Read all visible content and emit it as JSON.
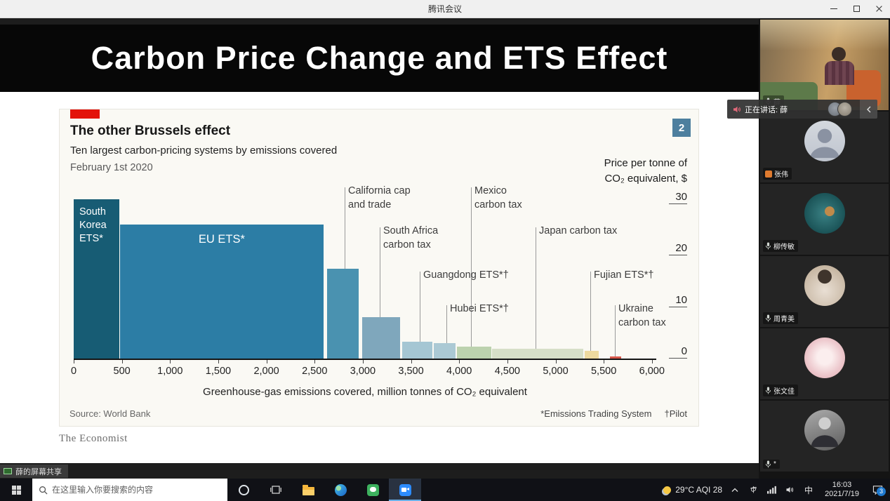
{
  "window": {
    "title": "腾讯会议"
  },
  "slide": {
    "title": "Carbon Price Change and ETS Effect",
    "brand": "The Economist"
  },
  "chart": {
    "badge": "2",
    "title": "The other Brussels effect",
    "subtitle": "Ten largest carbon-pricing systems by emissions covered",
    "date": "February 1st 2020",
    "y_axis_title": [
      "Price per tonne of",
      "CO₂ equivalent, $"
    ],
    "x_axis_title": "Greenhouse-gas emissions covered, million tonnes of CO₂ equivalent",
    "source": "Source: World Bank",
    "footnotes": {
      "ets": "*Emissions Trading System",
      "pilot": "†Pilot"
    },
    "accent_red": "#e3120b",
    "badge_blue": "#4d7f9e"
  },
  "chart_data": {
    "type": "bar",
    "variant": "variable-width-bar",
    "title": "The other Brussels effect",
    "subtitle": "Ten largest carbon-pricing systems by emissions covered",
    "date": "February 1st 2020",
    "xlabel": "Greenhouse-gas emissions covered, million tonnes of CO₂ equivalent",
    "ylabel": "Price per tonne of CO₂ equivalent, $",
    "xlim": [
      0,
      6200
    ],
    "ylim": [
      0,
      32
    ],
    "grid": false,
    "legend": false,
    "x_ticks": [
      0,
      500,
      1000,
      1500,
      2000,
      2500,
      3000,
      3500,
      4000,
      4500,
      5000,
      5500,
      6000
    ],
    "x_tick_labels": [
      "0",
      "500",
      "1,000",
      "1,500",
      "2,000",
      "2,500",
      "3,000",
      "3,500",
      "4,000",
      "4,500",
      "5,000",
      "5,500",
      "6,000"
    ],
    "y_ticks": [
      30,
      20,
      10,
      0
    ],
    "source": "World Bank",
    "bars": [
      {
        "name": "South Korea ETS*",
        "x_start": 0,
        "x_end": 480,
        "price": 31,
        "color": "#175c74",
        "label_lines": [
          "South",
          "Korea",
          "ETS*"
        ],
        "label_align": "left"
      },
      {
        "name": "EU ETS*",
        "x_start": 480,
        "x_end": 2600,
        "price": 26,
        "color": "#2c7da5",
        "label_lines": [
          "EU ETS*"
        ],
        "label_align": "center"
      },
      {
        "name": "California cap and trade",
        "x_start": 2630,
        "x_end": 2965,
        "price": 17.5,
        "color": "#4a92b0"
      },
      {
        "name": "South Africa carbon tax",
        "x_start": 2990,
        "x_end": 3395,
        "price": 8,
        "color": "#7fa7bc"
      },
      {
        "name": "Guangdong ETS*†",
        "x_start": 3410,
        "x_end": 3730,
        "price": 3.3,
        "color": "#a5c6d3"
      },
      {
        "name": "Hubei ETS*†",
        "x_start": 3735,
        "x_end": 3970,
        "price": 3,
        "color": "#abc9d4"
      },
      {
        "name": "Mexico carbon tax",
        "x_start": 3975,
        "x_end": 4340,
        "price": 2.3,
        "color": "#bcd2ae"
      },
      {
        "name": "Japan carbon tax",
        "x_start": 4340,
        "x_end": 5295,
        "price": 1.9,
        "color": "#d6dfc8"
      },
      {
        "name": "Fujian ETS*†",
        "x_start": 5300,
        "x_end": 5455,
        "price": 1.5,
        "color": "#eeda9f"
      },
      {
        "name": "Ukraine carbon tax",
        "x_start": 5565,
        "x_end": 5690,
        "price": 0.4,
        "color": "#d8574a"
      }
    ],
    "annotations": [
      {
        "lines": [
          "California cap",
          "and trade"
        ],
        "bar": 2
      },
      {
        "lines": [
          "Mexico",
          "carbon tax"
        ],
        "bar": 6
      },
      {
        "lines": [
          "South Africa",
          "carbon tax"
        ],
        "bar": 3
      },
      {
        "lines": [
          "Japan carbon tax"
        ],
        "bar": 7
      },
      {
        "lines": [
          "Guangdong ETS*†"
        ],
        "bar": 4
      },
      {
        "lines": [
          "Fujian ETS*†"
        ],
        "bar": 8
      },
      {
        "lines": [
          "Hubei ETS*†"
        ],
        "bar": 5
      },
      {
        "lines": [
          "Ukraine",
          "carbon tax"
        ],
        "bar": 9
      }
    ]
  },
  "meeting": {
    "speaking_label": "正在讲话: 薛",
    "share_chip_label": "薛的屏幕共享",
    "participants": [
      {
        "name": "薛",
        "type": "video"
      },
      {
        "name": "张伟"
      },
      {
        "name": "柳传敏"
      },
      {
        "name": "周青美"
      },
      {
        "name": "张文佳"
      },
      {
        "name": "*"
      }
    ]
  },
  "taskbar": {
    "search_placeholder": "在这里输入你要搜索的内容",
    "weather": "29°C AQI 28",
    "ime": "中",
    "time": "16:03",
    "date": "2021/7/19",
    "notification_count": "3"
  }
}
